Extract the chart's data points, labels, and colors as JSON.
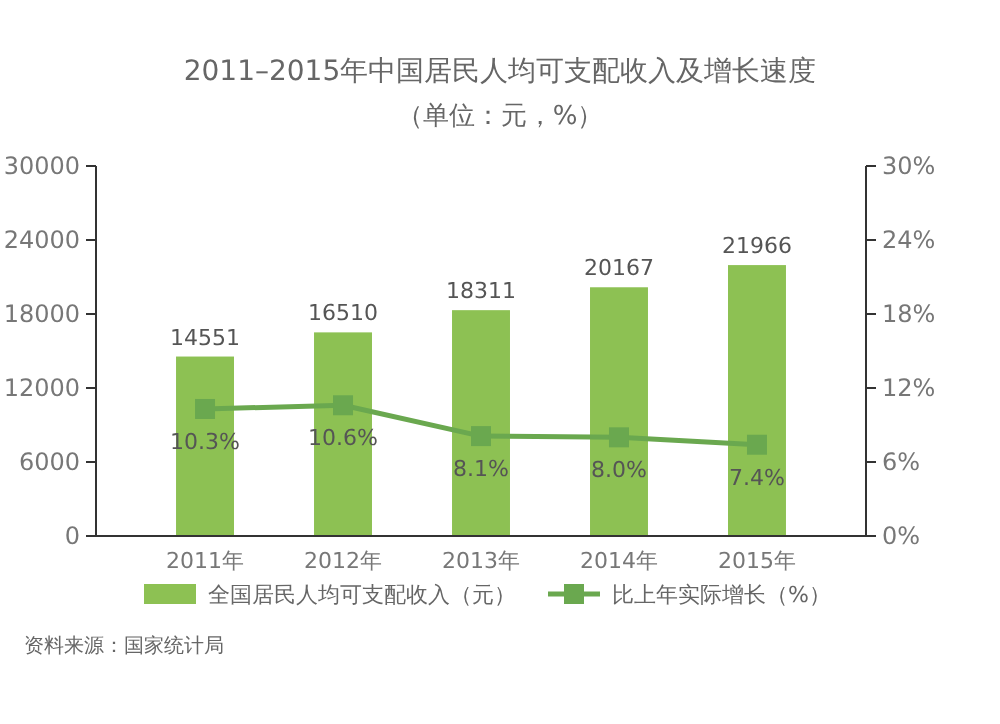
{
  "chart_data": {
    "type": "bar",
    "title": "2011–2015年中国居民人均可支配收入及增长速度",
    "subtitle": "（单位：元，%）",
    "categories": [
      "2011年",
      "2012年",
      "2013年",
      "2014年",
      "2015年"
    ],
    "series": [
      {
        "name": "全国居民人均可支配收入（元）",
        "color": "#8dc153",
        "values": [
          14551,
          16510,
          18311,
          20167,
          21966
        ],
        "value_labels": [
          "14551",
          "16510",
          "18311",
          "20167",
          "21966"
        ]
      },
      {
        "name": "比上年实际增长（%）",
        "type": "line",
        "axis": "y2",
        "color": "#6aa84f",
        "values": [
          10.3,
          10.6,
          8.1,
          8.0,
          7.4
        ],
        "value_labels": [
          "10.3%",
          "10.6%",
          "8.1%",
          "8.0%",
          "7.4%"
        ]
      }
    ],
    "ylim": [
      0,
      30000
    ],
    "yticks": [
      0,
      6000,
      12000,
      18000,
      24000,
      30000
    ],
    "y2lim": [
      0,
      30
    ],
    "y2ticks": [
      {
        "value": 0,
        "label": "0%"
      },
      {
        "value": 6,
        "label": "6%"
      },
      {
        "value": 12,
        "label": "12%"
      },
      {
        "value": 18,
        "label": "18%"
      },
      {
        "value": 24,
        "label": "24%"
      },
      {
        "value": 30,
        "label": "30%"
      }
    ],
    "marker": "square",
    "legend": "bottom",
    "grid": false,
    "annotations": [
      "资料来源：国家统计局"
    ]
  }
}
